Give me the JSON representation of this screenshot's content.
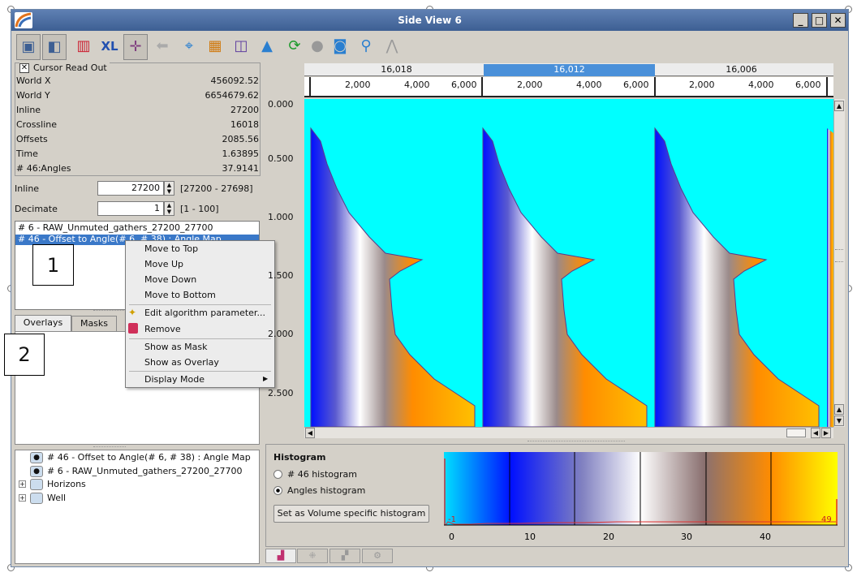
{
  "window": {
    "title": "Side View 6",
    "controls": [
      "_",
      "□",
      "✕"
    ],
    "icon_name": "app-icon"
  },
  "toolbar": {
    "items": [
      {
        "name": "view-2d-icon"
      },
      {
        "name": "view-3d-icon"
      },
      {
        "name": "color-bar-icon"
      },
      {
        "name": "xl-export-icon",
        "label": "XL"
      },
      {
        "name": "pan-cursor-icon"
      },
      {
        "name": "back-arrow-icon"
      },
      {
        "name": "crosshair-icon"
      },
      {
        "name": "tiles-icon"
      },
      {
        "name": "stack-icon"
      },
      {
        "name": "fill-icon"
      },
      {
        "name": "refresh-icon"
      },
      {
        "name": "disc-icon"
      },
      {
        "name": "camera-icon"
      },
      {
        "name": "search-icon"
      },
      {
        "name": "draw-icon"
      }
    ]
  },
  "cursor_readout": {
    "title": "Cursor Read Out",
    "rows": [
      {
        "label": "World X",
        "value": "456092.52"
      },
      {
        "label": "World Y",
        "value": "6654679.62"
      },
      {
        "label": "Inline",
        "value": "27200"
      },
      {
        "label": "Crossline",
        "value": "16018"
      },
      {
        "label": "Offsets",
        "value": "2085.56"
      },
      {
        "label": "Time",
        "value": "1.63895"
      },
      {
        "label": "# 46:Angles",
        "value": "37.9141"
      }
    ]
  },
  "inline_ctrl": {
    "label": "Inline",
    "value": "27200",
    "range": "[27200 - 27698]"
  },
  "decimate_ctrl": {
    "label": "Decimate",
    "value": "1",
    "range": "[1 - 100]"
  },
  "layers": [
    "# 6 - RAW_Unmuted_gathers_27200_27700",
    "# 46 - Offset to Angle(# 6, # 38) : Angle Map"
  ],
  "callouts": [
    "1",
    "2"
  ],
  "context_menu": {
    "items": [
      "Move to Top",
      "Move Up",
      "Move Down",
      "Move to Bottom",
      "Edit algorithm parameter...",
      "Remove",
      "Show as Mask",
      "Show as Overlay",
      "Display Mode"
    ]
  },
  "tabs": {
    "overlays": "Overlays",
    "masks": "Masks"
  },
  "tree": [
    "# 46 - Offset to Angle(# 6, # 38) : Angle Map",
    "# 6 - RAW_Unmuted_gathers_27200_27700",
    "Horizons",
    "Well"
  ],
  "gathers": {
    "headers": [
      "16,018",
      "16,012",
      "16,006"
    ],
    "selected_index": 1,
    "x_ticks": [
      "2,000",
      "4,000",
      "6,000"
    ],
    "y_ticks": [
      "0.000",
      "0.500",
      "1.000",
      "1.500",
      "2.000",
      "2.500"
    ],
    "colors": {
      "background": "#00ffff",
      "selected_header": "#4a90d9"
    }
  },
  "histogram": {
    "title": "Histogram",
    "options": [
      "# 46 histogram",
      "Angles histogram"
    ],
    "selected_option": 1,
    "button": "Set as Volume specific histogram",
    "range_min": "-1",
    "range_max": "49",
    "x_ticks": [
      "0",
      "10",
      "20",
      "30",
      "40"
    ]
  },
  "bottom_tabs": [
    "histogram-tab-icon",
    "crossplot-tab-icon",
    "statistics-tab-icon",
    "settings-tab-icon"
  ]
}
